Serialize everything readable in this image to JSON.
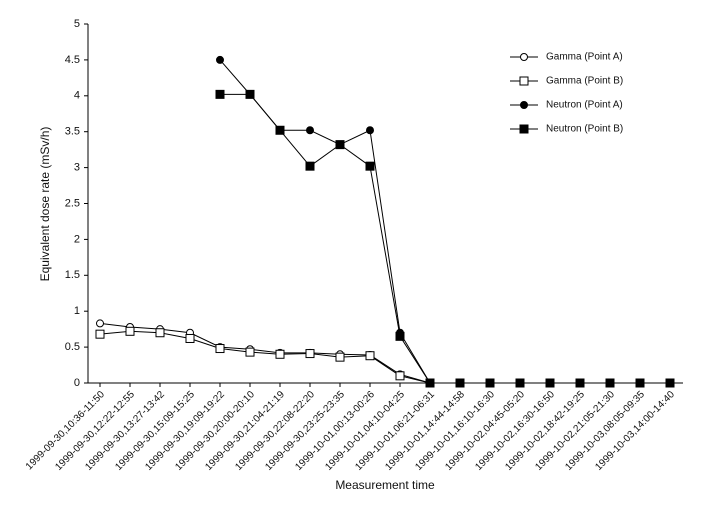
{
  "chart_data": {
    "type": "line",
    "y_label": "Equivalent dose rate (mSv/h)",
    "x_label": "Measurement time",
    "categories": [
      "1999-09-30,10:36-11:50",
      "1999-09-30,12:22-12:55",
      "1999-09-30,13:27-13:42",
      "1999-09-30,15:09-15:25",
      "1999-09-30,19:09-19:22",
      "1999-09-30,20:00-20:10",
      "1999-09-30,21:04-21:19",
      "1999-09-30,22:08-22:20",
      "1999-09-30,23:25-23:35",
      "1999-10-01,00:13-00:26",
      "1999-10-01,04:10-04:25",
      "1999-10-01,06:21-06:31",
      "1999-10-01,14:44-14:58",
      "1999-10-01,16:10-16:30",
      "1999-10-02,04:45-05:20",
      "1999-10-02,16:30-16:50",
      "1999-10-02,18:42-19:25",
      "1999-10-02,21:05-21:30",
      "1999-10-03,08:05-09:35",
      "1999-10-03,14:00-14:40"
    ],
    "series": [
      {
        "name": "Gamma (Point A)",
        "color": "#000000",
        "marker": "circle",
        "filled": false,
        "values": [
          0.83,
          0.78,
          0.75,
          0.7,
          0.5,
          0.47,
          0.42,
          0.42,
          0.4,
          0.39,
          0.12,
          0,
          null,
          null,
          null,
          null,
          null,
          null,
          null,
          null
        ]
      },
      {
        "name": "Gamma (Point B)",
        "color": "#000000",
        "marker": "square",
        "filled": false,
        "values": [
          0.68,
          0.72,
          0.7,
          0.62,
          0.48,
          0.43,
          0.4,
          0.41,
          0.36,
          0.38,
          0.1,
          0,
          null,
          null,
          null,
          null,
          null,
          null,
          null,
          null
        ]
      },
      {
        "name": "Neutron (Point A)",
        "color": "#000000",
        "marker": "circle",
        "filled": true,
        "values": [
          null,
          null,
          null,
          null,
          4.5,
          4.02,
          3.52,
          3.52,
          3.32,
          3.52,
          0.7,
          0,
          0,
          0,
          0,
          0,
          0,
          0,
          0,
          0
        ]
      },
      {
        "name": "Neutron (Point B)",
        "color": "#000000",
        "marker": "square",
        "filled": true,
        "values": [
          null,
          null,
          null,
          null,
          4.02,
          4.02,
          3.52,
          3.02,
          3.32,
          3.02,
          0.65,
          0,
          0,
          0,
          0,
          0,
          0,
          0,
          0,
          0
        ]
      }
    ],
    "ylim": [
      0,
      5
    ],
    "yticks": [
      0,
      0.5,
      1,
      1.5,
      2,
      2.5,
      3,
      3.5,
      4,
      4.5,
      5
    ],
    "legend": "upper right"
  }
}
